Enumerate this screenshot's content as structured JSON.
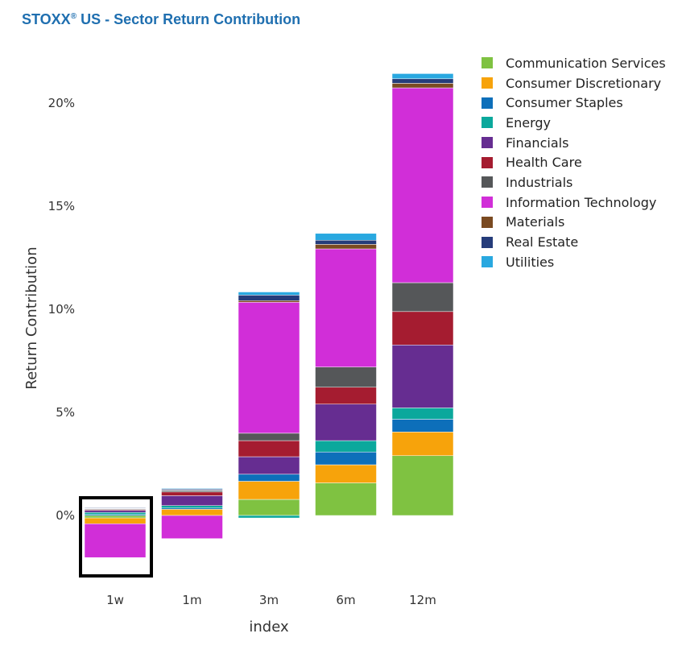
{
  "title": "STOXX",
  "title_reg": "®",
  "title_rest": " US - Sector Return Contribution",
  "chart_data": {
    "type": "bar",
    "stacked": true,
    "categories": [
      "1w",
      "1m",
      "3m",
      "6m",
      "12m"
    ],
    "xlabel": "index",
    "ylabel": "Return Contribution",
    "ylim": [
      -3.3,
      22.5
    ],
    "yticks": [
      0,
      5,
      10,
      15,
      20
    ],
    "ytick_labels": [
      "0%",
      "5%",
      "10%",
      "15%",
      "20%"
    ],
    "legend_position": "right",
    "highlight_category": "1w",
    "series": [
      {
        "name": "Communication Services",
        "color": "#7fc241",
        "values": [
          -0.12,
          0.0,
          0.78,
          1.58,
          2.9
        ]
      },
      {
        "name": "Consumer Discretionary",
        "color": "#f7a30b",
        "values": [
          -0.28,
          0.3,
          0.88,
          0.88,
          1.15
        ]
      },
      {
        "name": "Consumer Staples",
        "color": "#0d6fba",
        "values": [
          0.05,
          0.06,
          0.34,
          0.62,
          0.62
        ]
      },
      {
        "name": "Energy",
        "color": "#0ba89c",
        "values": [
          0.1,
          0.12,
          -0.12,
          0.55,
          0.55
        ]
      },
      {
        "name": "Financials",
        "color": "#662d91",
        "values": [
          0.1,
          0.48,
          0.85,
          1.77,
          3.05
        ]
      },
      {
        "name": "Health Care",
        "color": "#a51c30",
        "values": [
          0.04,
          0.18,
          0.78,
          0.82,
          1.62
        ]
      },
      {
        "name": "Industrials",
        "color": "#555759",
        "values": [
          0.04,
          0.07,
          0.36,
          0.98,
          1.4
        ]
      },
      {
        "name": "Information Technology",
        "color": "#d12ed8",
        "values": [
          -1.64,
          -1.12,
          6.35,
          5.73,
          9.45
        ]
      },
      {
        "name": "Materials",
        "color": "#7a4a21",
        "values": [
          0.01,
          0.02,
          0.08,
          0.22,
          0.22
        ]
      },
      {
        "name": "Real Estate",
        "color": "#253c7a",
        "values": [
          0.04,
          0.05,
          0.27,
          0.2,
          0.22
        ]
      },
      {
        "name": "Utilities",
        "color": "#29a8e0",
        "values": [
          0.01,
          0.03,
          0.15,
          0.33,
          0.25
        ]
      }
    ]
  }
}
